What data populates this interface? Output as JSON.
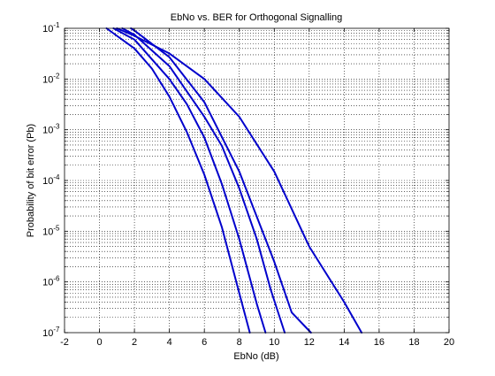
{
  "chart_data": {
    "type": "line",
    "title": "EbNo vs. BER for Orthogonal Signalling",
    "xlabel": "EbNo (dB)",
    "ylabel": "Probability of bit error (Pb)",
    "xlim": [
      -2,
      20
    ],
    "ylim": [
      1e-07,
      0.1
    ],
    "yscale": "log",
    "grid": true,
    "x_ticks": [
      {
        "value": -2,
        "label": "-2"
      },
      {
        "value": 0,
        "label": "0"
      },
      {
        "value": 2,
        "label": "2"
      },
      {
        "value": 4,
        "label": "4"
      },
      {
        "value": 6,
        "label": "6"
      },
      {
        "value": 8,
        "label": "8"
      },
      {
        "value": 10,
        "label": "10"
      },
      {
        "value": 12,
        "label": "12"
      },
      {
        "value": 14,
        "label": "14"
      },
      {
        "value": 16,
        "label": "16"
      },
      {
        "value": 18,
        "label": "18"
      },
      {
        "value": 20,
        "label": "20"
      }
    ],
    "y_ticks": [
      {
        "value": 1e-07,
        "base": "10",
        "exp": "-7"
      },
      {
        "value": 1e-06,
        "base": "10",
        "exp": "-6"
      },
      {
        "value": 1e-05,
        "base": "10",
        "exp": "-5"
      },
      {
        "value": 0.0001,
        "base": "10",
        "exp": "-4"
      },
      {
        "value": 0.001,
        "base": "10",
        "exp": "-3"
      },
      {
        "value": 0.01,
        "base": "10",
        "exp": "-2"
      },
      {
        "value": 0.1,
        "base": "10",
        "exp": "-1"
      }
    ],
    "line_color": "#0000cc",
    "series": [
      {
        "x": [
          1.0,
          2.0,
          4.0,
          6.0,
          8.0,
          10.0,
          12.0,
          14.0,
          15.0
        ],
        "y": [
          0.1,
          0.071,
          0.032,
          0.01,
          0.0018,
          0.00015,
          5e-06,
          4e-07,
          1e-07
        ]
      },
      {
        "x": [
          1.8,
          2.0,
          4.0,
          6.0,
          8.0,
          10.0,
          11.0,
          12.1
        ],
        "y": [
          0.1,
          0.09,
          0.027,
          0.0035,
          0.00015,
          2.5e-06,
          2.5e-07,
          1e-07
        ]
      },
      {
        "x": [
          1.3,
          2.0,
          4.0,
          6.0,
          7.0,
          8.0,
          9.0,
          9.8,
          10.6
        ],
        "y": [
          0.1,
          0.075,
          0.018,
          0.0018,
          0.00048,
          7e-05,
          7e-06,
          7e-07,
          1e-07
        ]
      },
      {
        "x": [
          0.8,
          2.0,
          4.0,
          5.0,
          6.0,
          7.0,
          8.0,
          9.0,
          9.5
        ],
        "y": [
          0.1,
          0.06,
          0.01,
          0.0032,
          0.0007,
          8.5e-05,
          7e-06,
          3.7e-07,
          1e-07
        ]
      },
      {
        "x": [
          0.4,
          2.0,
          3.0,
          4.0,
          5.0,
          6.0,
          7.0,
          8.0,
          8.6
        ],
        "y": [
          0.1,
          0.04,
          0.016,
          0.0045,
          0.0009,
          0.00013,
          1.2e-05,
          6e-07,
          1e-07
        ]
      }
    ]
  }
}
